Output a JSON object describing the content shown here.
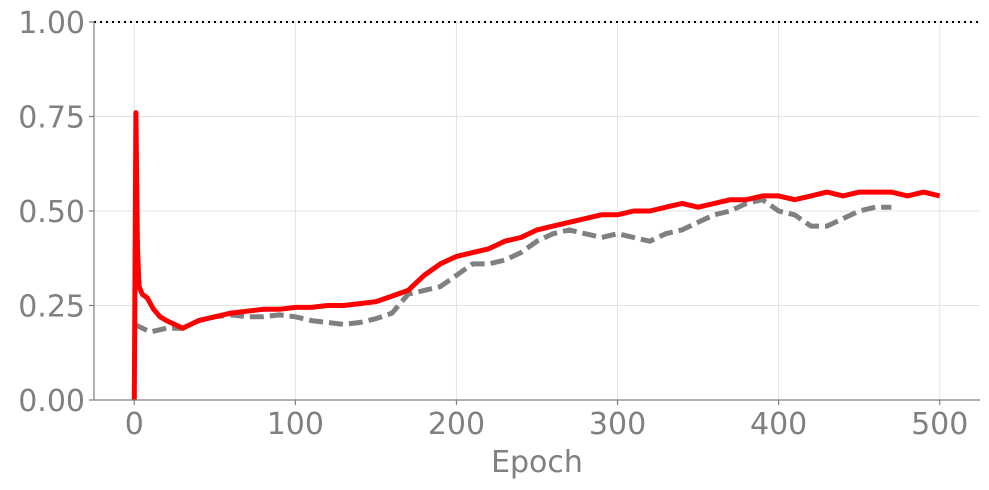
{
  "chart_data": {
    "type": "line",
    "title": "",
    "xlabel": "Epoch",
    "ylabel": "",
    "xlim": [
      -25,
      525
    ],
    "ylim": [
      0,
      1
    ],
    "x_ticks": [
      0,
      100,
      200,
      300,
      400,
      500
    ],
    "x_tick_labels": [
      "0",
      "100",
      "200",
      "300",
      "400",
      "500"
    ],
    "y_ticks": [
      0,
      0.25,
      0.5,
      0.75,
      1.0
    ],
    "y_tick_labels": [
      "0.00",
      "0.25",
      "0.50",
      "0.75",
      "1.00"
    ],
    "grid": true,
    "reference_line": {
      "y": 1.0,
      "style": "dotted",
      "color": "#000000"
    },
    "series": [
      {
        "style": "solid",
        "color": "#ff0000",
        "x": [
          0,
          1,
          2,
          3,
          5,
          8,
          12,
          16,
          20,
          25,
          30,
          40,
          50,
          60,
          70,
          80,
          90,
          100,
          110,
          120,
          130,
          140,
          150,
          160,
          170,
          180,
          190,
          200,
          210,
          220,
          230,
          240,
          250,
          260,
          270,
          280,
          290,
          300,
          310,
          320,
          330,
          340,
          350,
          360,
          370,
          380,
          390,
          400,
          410,
          420,
          430,
          440,
          450,
          460,
          470,
          480,
          490,
          500
        ],
        "y": [
          0.0,
          0.76,
          0.4,
          0.3,
          0.28,
          0.27,
          0.24,
          0.22,
          0.21,
          0.2,
          0.19,
          0.21,
          0.22,
          0.23,
          0.235,
          0.24,
          0.24,
          0.245,
          0.245,
          0.25,
          0.25,
          0.255,
          0.26,
          0.275,
          0.29,
          0.33,
          0.36,
          0.38,
          0.39,
          0.4,
          0.42,
          0.43,
          0.45,
          0.46,
          0.47,
          0.48,
          0.49,
          0.49,
          0.5,
          0.5,
          0.51,
          0.52,
          0.51,
          0.52,
          0.53,
          0.53,
          0.54,
          0.54,
          0.53,
          0.54,
          0.55,
          0.54,
          0.55,
          0.55,
          0.55,
          0.54,
          0.55,
          0.54
        ]
      },
      {
        "style": "dashed",
        "color": "#808080",
        "x": [
          0,
          10,
          20,
          30,
          40,
          50,
          60,
          70,
          80,
          90,
          100,
          110,
          120,
          130,
          140,
          150,
          160,
          170,
          180,
          190,
          200,
          210,
          220,
          230,
          240,
          250,
          260,
          270,
          280,
          290,
          300,
          310,
          320,
          330,
          340,
          350,
          360,
          370,
          380,
          390,
          400,
          410,
          420,
          430,
          440,
          450,
          460,
          470
        ],
        "y": [
          0.2,
          0.18,
          0.19,
          0.19,
          0.21,
          0.22,
          0.225,
          0.22,
          0.22,
          0.225,
          0.22,
          0.21,
          0.205,
          0.2,
          0.205,
          0.215,
          0.23,
          0.28,
          0.29,
          0.3,
          0.33,
          0.36,
          0.36,
          0.37,
          0.39,
          0.42,
          0.44,
          0.45,
          0.44,
          0.43,
          0.44,
          0.43,
          0.42,
          0.44,
          0.45,
          0.47,
          0.49,
          0.5,
          0.52,
          0.53,
          0.5,
          0.49,
          0.46,
          0.46,
          0.48,
          0.5,
          0.51,
          0.51
        ]
      }
    ]
  }
}
